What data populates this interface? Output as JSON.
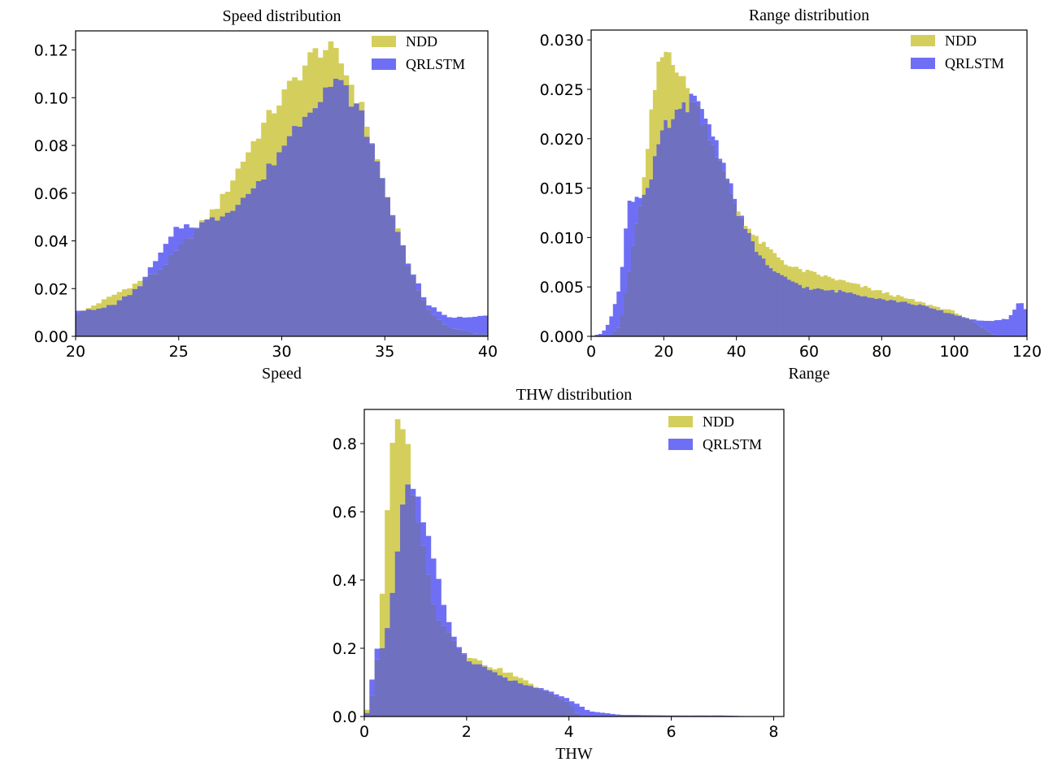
{
  "colors": {
    "ndd": "#d4cf5c",
    "qrlstm": "#6f6ff5",
    "overlap": "#6f70bf",
    "axis": "#000000"
  },
  "chart_data": [
    {
      "id": "speed",
      "type": "bar",
      "title": "Speed distribution",
      "xlabel": "Speed",
      "ylabel": "",
      "xlim": [
        20,
        40
      ],
      "ylim": [
        0,
        0.128
      ],
      "xticks": [
        20,
        25,
        30,
        35,
        40
      ],
      "yticks": [
        0.0,
        0.02,
        0.04,
        0.06,
        0.08,
        0.1,
        0.12
      ],
      "ytick_labels": [
        "0.00",
        "0.02",
        "0.04",
        "0.06",
        "0.08",
        "0.10",
        "0.12"
      ],
      "legend_position": "top-right",
      "series": [
        {
          "name": "NDD",
          "color": "#d4cf5c",
          "x": [
            20,
            24,
            26,
            27,
            28,
            29,
            30,
            31,
            31.5,
            32,
            32.5,
            33,
            34,
            35,
            36,
            37,
            38,
            39.5
          ],
          "y": [
            0.009,
            0.027,
            0.046,
            0.056,
            0.072,
            0.087,
            0.1,
            0.112,
            0.118,
            0.121,
            0.119,
            0.113,
            0.093,
            0.062,
            0.033,
            0.012,
            0.004,
            0.001
          ]
        },
        {
          "name": "QRLSTM",
          "color": "#6f6ff5",
          "x": [
            20,
            21,
            22,
            23,
            24,
            25,
            26,
            27,
            28,
            29,
            30,
            31,
            32,
            32.5,
            33,
            34,
            35,
            36,
            37,
            38,
            39,
            39.8
          ],
          "y": [
            0.011,
            0.011,
            0.014,
            0.02,
            0.033,
            0.046,
            0.047,
            0.05,
            0.057,
            0.065,
            0.079,
            0.092,
            0.103,
            0.106,
            0.105,
            0.09,
            0.062,
            0.034,
            0.014,
            0.008,
            0.008,
            0.009
          ]
        }
      ]
    },
    {
      "id": "range",
      "type": "bar",
      "title": "Range distribution",
      "xlabel": "Range",
      "ylabel": "",
      "xlim": [
        0,
        120
      ],
      "ylim": [
        0,
        0.031
      ],
      "xticks": [
        0,
        20,
        40,
        60,
        80,
        100,
        120
      ],
      "yticks": [
        0.0,
        0.005,
        0.01,
        0.015,
        0.02,
        0.025,
        0.03
      ],
      "ytick_labels": [
        "0.000",
        "0.005",
        "0.010",
        "0.015",
        "0.020",
        "0.025",
        "0.030"
      ],
      "legend_position": "top-right",
      "series": [
        {
          "name": "NDD",
          "color": "#d4cf5c",
          "x": [
            0,
            5,
            8,
            12,
            15,
            17,
            19,
            21,
            23,
            25,
            28,
            32,
            36,
            40,
            45,
            50,
            55,
            60,
            70,
            80,
            90,
            100,
            105,
            110,
            112
          ],
          "y": [
            0,
            0,
            0.001,
            0.01,
            0.017,
            0.024,
            0.028,
            0.029,
            0.028,
            0.026,
            0.024,
            0.021,
            0.017,
            0.013,
            0.01,
            0.0085,
            0.007,
            0.0065,
            0.0055,
            0.0045,
            0.0035,
            0.0025,
            0.0015,
            0.0003,
            0
          ]
        },
        {
          "name": "QRLSTM",
          "color": "#6f6ff5",
          "x": [
            0,
            3,
            5,
            8,
            9,
            10,
            12,
            14,
            16,
            18,
            20,
            23,
            25,
            28,
            30,
            32,
            35,
            38,
            40,
            45,
            50,
            60,
            70,
            80,
            90,
            100,
            105,
            110,
            115,
            118,
            120
          ],
          "y": [
            0,
            0.0003,
            0.0015,
            0.005,
            0.009,
            0.0135,
            0.014,
            0.0145,
            0.015,
            0.0185,
            0.021,
            0.022,
            0.023,
            0.024,
            0.023,
            0.022,
            0.019,
            0.016,
            0.013,
            0.009,
            0.0065,
            0.0048,
            0.0045,
            0.0038,
            0.0032,
            0.0022,
            0.0017,
            0.0015,
            0.0018,
            0.0036,
            0.0026
          ]
        }
      ]
    },
    {
      "id": "thw",
      "type": "bar",
      "title": "THW distribution",
      "xlabel": "THW",
      "ylabel": "",
      "xlim": [
        0,
        8.2
      ],
      "ylim": [
        0,
        0.9
      ],
      "xticks": [
        0,
        2,
        4,
        6,
        8
      ],
      "yticks": [
        0.0,
        0.2,
        0.4,
        0.6,
        0.8
      ],
      "ytick_labels": [
        "0.0",
        "0.2",
        "0.4",
        "0.6",
        "0.8"
      ],
      "legend_position": "top-right",
      "series": [
        {
          "name": "NDD",
          "color": "#d4cf5c",
          "x": [
            0,
            0.2,
            0.35,
            0.45,
            0.55,
            0.65,
            0.72,
            0.8,
            0.9,
            1.0,
            1.2,
            1.4,
            1.6,
            1.8,
            2.0,
            2.4,
            2.8,
            3.2,
            3.6,
            4.0,
            4.2
          ],
          "y": [
            0,
            0.08,
            0.35,
            0.6,
            0.78,
            0.86,
            0.88,
            0.84,
            0.72,
            0.62,
            0.45,
            0.3,
            0.26,
            0.21,
            0.18,
            0.15,
            0.13,
            0.1,
            0.07,
            0.04,
            0
          ]
        },
        {
          "name": "QRLSTM",
          "color": "#6f6ff5",
          "x": [
            0,
            0.1,
            0.2,
            0.35,
            0.5,
            0.6,
            0.7,
            0.8,
            0.9,
            1.0,
            1.2,
            1.4,
            1.6,
            1.8,
            2.0,
            2.4,
            2.8,
            3.2,
            3.6,
            4.0,
            4.4,
            5.0,
            6.0,
            7.0,
            7.3,
            7.5
          ],
          "y": [
            0,
            0.02,
            0.2,
            0.2,
            0.3,
            0.42,
            0.56,
            0.68,
            0.69,
            0.66,
            0.55,
            0.42,
            0.3,
            0.22,
            0.17,
            0.14,
            0.11,
            0.09,
            0.075,
            0.05,
            0.015,
            0.005,
            0.003,
            0.003,
            0.002,
            0
          ]
        }
      ]
    }
  ]
}
